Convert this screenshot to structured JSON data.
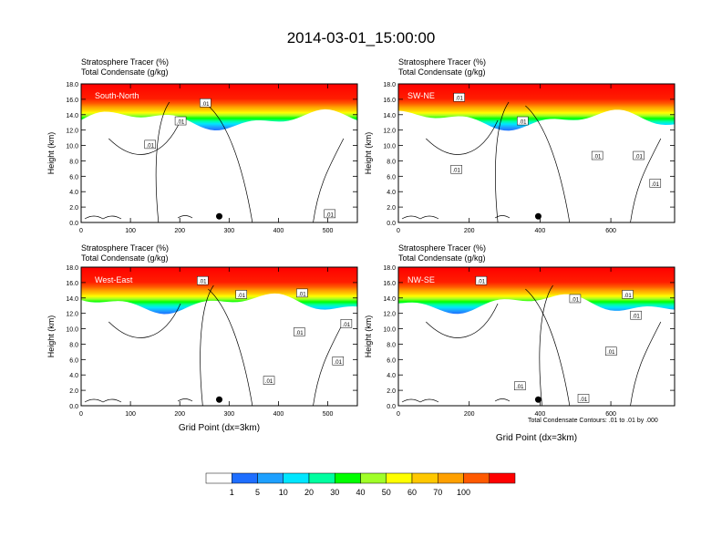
{
  "figure": {
    "title": "2014-03-01_15:00:00",
    "contour_note": "Total Condensate Contours: .01 to .01 by .000"
  },
  "chart_data": [
    {
      "type": "heatmap",
      "panel": "South-North",
      "title_lines": [
        "Stratosphere Tracer   (%)",
        "Total Condensate   (g/kg)"
      ],
      "ylabel": "Height (km)",
      "xlabel": "",
      "xlim": [
        0,
        560
      ],
      "xticks": [
        0,
        100,
        200,
        300,
        400,
        500
      ],
      "ylim": [
        0,
        18
      ],
      "yticks": [
        0,
        2,
        4,
        6,
        8,
        10,
        12,
        14,
        16,
        18
      ],
      "yticklabels": [
        "0.0",
        "2.0",
        "4.0",
        "6.0",
        "8.0",
        "10.0",
        "12.0",
        "14.0",
        "16.0",
        "18.0"
      ],
      "marker_x": 280,
      "contour_labels": [
        ".01",
        ".01",
        ".01",
        ".01"
      ]
    },
    {
      "type": "heatmap",
      "panel": "SW-NE",
      "title_lines": [
        "Stratosphere Tracer   (%)",
        "Total Condensate   (g/kg)"
      ],
      "ylabel": "Height (km)",
      "xlabel": "",
      "xlim": [
        0,
        780
      ],
      "xticks": [
        0,
        200,
        400,
        600
      ],
      "ylim": [
        0,
        18
      ],
      "yticks": [
        0,
        2,
        4,
        6,
        8,
        10,
        12,
        14,
        16,
        18
      ],
      "yticklabels": [
        "0.0",
        "2.0",
        "4.0",
        "6.0",
        "8.0",
        "10.0",
        "12.0",
        "14.0",
        "16.0",
        "18.0"
      ],
      "marker_x": 395,
      "contour_labels": [
        ".01",
        ".01",
        ".01",
        ".01",
        ".01",
        ".01"
      ]
    },
    {
      "type": "heatmap",
      "panel": "West-East",
      "title_lines": [
        "Stratosphere Tracer   (%)",
        "Total Condensate   (g/kg)"
      ],
      "ylabel": "Height (km)",
      "xlabel": "Grid Point (dx=3km)",
      "xlim": [
        0,
        560
      ],
      "xticks": [
        0,
        100,
        200,
        300,
        400,
        500
      ],
      "ylim": [
        0,
        18
      ],
      "yticks": [
        0,
        2,
        4,
        6,
        8,
        10,
        12,
        14,
        16,
        18
      ],
      "yticklabels": [
        "0.0",
        "2.0",
        "4.0",
        "6.0",
        "8.0",
        "10.0",
        "12.0",
        "14.0",
        "16.0",
        "18.0"
      ],
      "marker_x": 280,
      "contour_labels": [
        ".01",
        ".01",
        ".01",
        ".01",
        ".01",
        ".01",
        ".01"
      ]
    },
    {
      "type": "heatmap",
      "panel": "NW-SE",
      "title_lines": [
        "Stratosphere Tracer   (%)",
        "Total Condensate   (g/kg)"
      ],
      "ylabel": "Height (km)",
      "xlabel": "Grid Point (dx=3km)",
      "xlim": [
        0,
        780
      ],
      "xticks": [
        0,
        200,
        400,
        600
      ],
      "ylim": [
        0,
        18
      ],
      "yticks": [
        0,
        2,
        4,
        6,
        8,
        10,
        12,
        14,
        16,
        18
      ],
      "yticklabels": [
        "0.0",
        "2.0",
        "4.0",
        "6.0",
        "8.0",
        "10.0",
        "12.0",
        "14.0",
        "16.0",
        "18.0"
      ],
      "marker_x": 395,
      "contour_labels": [
        ".01",
        ".01",
        ".01",
        ".01",
        ".01",
        ".01",
        ".01"
      ]
    }
  ],
  "colorbar": {
    "colors": [
      "#ffffff",
      "#1e6eff",
      "#1ea0ff",
      "#00e6ff",
      "#00ffa0",
      "#00ff00",
      "#a0ff28",
      "#ffff00",
      "#ffc800",
      "#ffa000",
      "#ff5a00",
      "#ff0000"
    ],
    "labels": [
      "1",
      "5",
      "10",
      "20",
      "30",
      "40",
      "50",
      "60",
      "70",
      "100"
    ]
  }
}
